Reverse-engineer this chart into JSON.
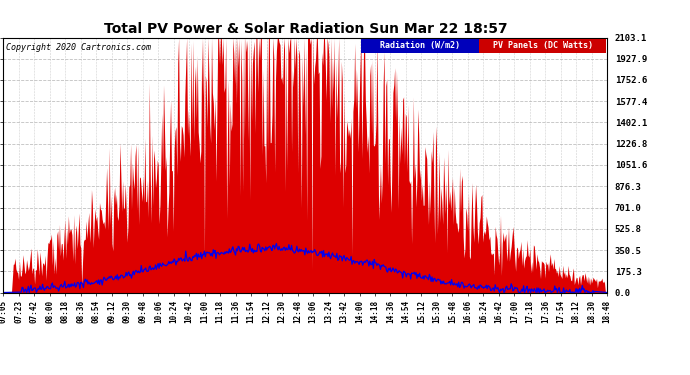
{
  "title": "Total PV Power & Solar Radiation Sun Mar 22 18:57",
  "copyright": "Copyright 2020 Cartronics.com",
  "background_color": "#ffffff",
  "plot_bg_color": "#ffffff",
  "grid_color": "#b0b0b0",
  "pv_color": "#dd0000",
  "radiation_color": "#0000ee",
  "yticks": [
    0.0,
    175.3,
    350.5,
    525.8,
    701.0,
    876.3,
    1051.6,
    1226.8,
    1402.1,
    1577.4,
    1752.6,
    1927.9,
    2103.1
  ],
  "xtick_labels": [
    "07:05",
    "07:23",
    "07:42",
    "08:00",
    "08:18",
    "08:36",
    "08:54",
    "09:12",
    "09:30",
    "09:48",
    "10:06",
    "10:24",
    "10:42",
    "11:00",
    "11:18",
    "11:36",
    "11:54",
    "12:12",
    "12:30",
    "12:48",
    "13:06",
    "13:24",
    "13:42",
    "14:00",
    "14:18",
    "14:36",
    "14:54",
    "15:12",
    "15:30",
    "15:48",
    "16:06",
    "16:24",
    "16:42",
    "17:00",
    "17:18",
    "17:36",
    "17:54",
    "18:12",
    "18:30",
    "18:48"
  ],
  "legend_radiation_label": "Radiation (W/m2)",
  "legend_pv_label": "PV Panels (DC Watts)",
  "ymax": 2103.1
}
